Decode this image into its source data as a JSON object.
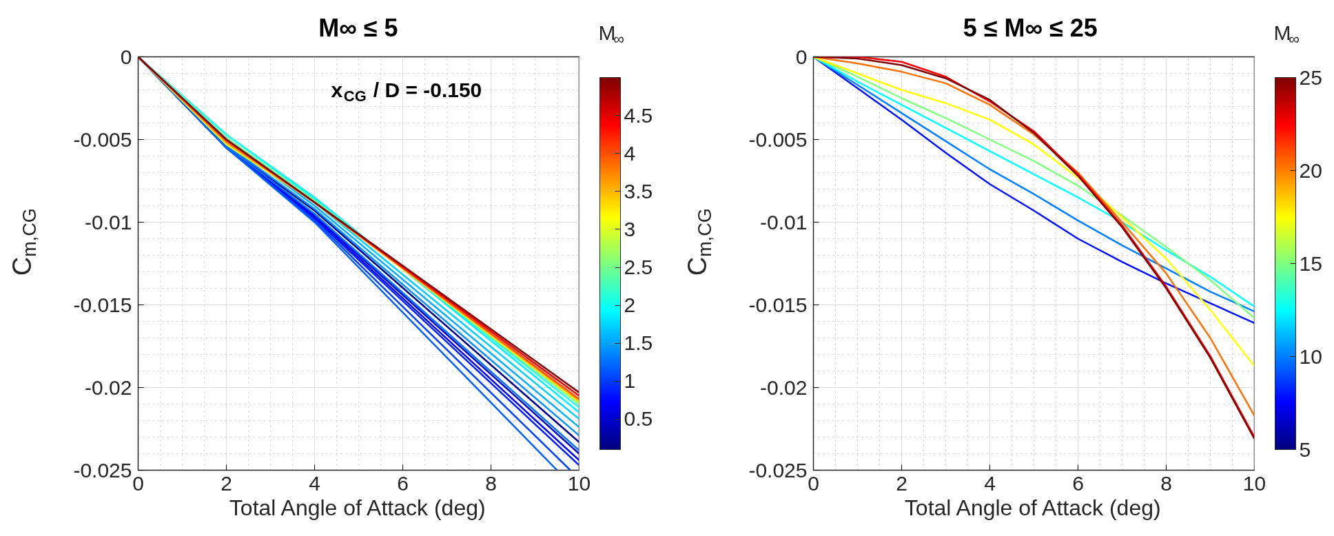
{
  "chart_data": [
    {
      "type": "line",
      "title": "M∞ ≤ 5",
      "xlabel": "Total Angle of Attack (deg)",
      "ylabel": "C$_{m,CG}$",
      "clabel": "M$_{∞}$",
      "annotations": [
        "x$_{CG}$ / D = -0.150"
      ],
      "xlim": [
        0,
        10
      ],
      "ylim": [
        -0.025,
        0
      ],
      "xticks": [
        0,
        2,
        4,
        6,
        8,
        10
      ],
      "yticks": [
        -0.025,
        -0.02,
        -0.015,
        -0.01,
        -0.005,
        0
      ],
      "clim": [
        0.1,
        5
      ],
      "cticks": [
        0.5,
        1,
        1.5,
        2,
        2.5,
        3,
        3.5,
        4,
        4.5
      ],
      "grid": true,
      "series": [
        {
          "color": "#00008f",
          "x": [
            0,
            2,
            4,
            10
          ],
          "values": [
            0,
            -0.0054,
            -0.0093,
            -0.0233
          ]
        },
        {
          "color": "#0000d0",
          "x": [
            0,
            2,
            4,
            10
          ],
          "values": [
            0,
            -0.0055,
            -0.0096,
            -0.024
          ]
        },
        {
          "color": "#0000ff",
          "x": [
            0,
            2,
            4,
            10
          ],
          "values": [
            0,
            -0.0055,
            -0.0097,
            -0.0244
          ]
        },
        {
          "color": "#0020ff",
          "x": [
            0,
            2,
            4,
            10
          ],
          "values": [
            0,
            -0.0055,
            -0.0098,
            -0.0247
          ]
        },
        {
          "color": "#0040ff",
          "x": [
            0,
            2,
            4,
            9.8
          ],
          "values": [
            0,
            -0.0055,
            -0.0099,
            -0.025
          ]
        },
        {
          "color": "#0060ff",
          "x": [
            0,
            2,
            4,
            9.5
          ],
          "values": [
            0,
            -0.0055,
            -0.01,
            -0.025
          ]
        },
        {
          "color": "#0070ff",
          "x": [
            0,
            2,
            4,
            10
          ],
          "values": [
            0,
            -0.0054,
            -0.0095,
            -0.0238
          ]
        },
        {
          "color": "#0090ff",
          "x": [
            0,
            2,
            4,
            10
          ],
          "values": [
            0,
            -0.0053,
            -0.0092,
            -0.0229
          ]
        },
        {
          "color": "#00b0ff",
          "x": [
            0,
            2,
            4,
            10
          ],
          "values": [
            0,
            -0.0051,
            -0.009,
            -0.0224
          ]
        },
        {
          "color": "#00d0ff",
          "x": [
            0,
            2,
            4,
            10
          ],
          "values": [
            0,
            -0.0049,
            -0.0088,
            -0.0219
          ]
        },
        {
          "color": "#00f0ff",
          "x": [
            0,
            2,
            4,
            10
          ],
          "values": [
            0,
            -0.0047,
            -0.0085,
            -0.0215
          ]
        },
        {
          "color": "#20ffdf",
          "x": [
            0,
            2,
            4,
            10
          ],
          "values": [
            0,
            -0.0047,
            -0.0086,
            -0.0212
          ]
        },
        {
          "color": "#70ff8f",
          "x": [
            0,
            2,
            4,
            10
          ],
          "values": [
            0,
            -0.0049,
            -0.0087,
            -0.021
          ]
        },
        {
          "color": "#e0ff20",
          "x": [
            0,
            2,
            4,
            10
          ],
          "values": [
            0,
            -0.0053,
            -0.0088,
            -0.0209
          ]
        },
        {
          "color": "#ffb000",
          "x": [
            0,
            2,
            4,
            10
          ],
          "values": [
            0,
            -0.0052,
            -0.0088,
            -0.0208
          ]
        },
        {
          "color": "#ff5000",
          "x": [
            0,
            2,
            4,
            10
          ],
          "values": [
            0,
            -0.0051,
            -0.0088,
            -0.0207
          ]
        },
        {
          "color": "#f00000",
          "x": [
            0,
            2,
            4,
            10
          ],
          "values": [
            0,
            -0.005,
            -0.0088,
            -0.0205
          ]
        },
        {
          "color": "#800000",
          "x": [
            0,
            2,
            4,
            10
          ],
          "values": [
            0,
            -0.005,
            -0.0088,
            -0.0203
          ]
        }
      ]
    },
    {
      "type": "line",
      "title": "5 ≤ M∞ ≤ 25",
      "xlabel": "Total Angle of Attack (deg)",
      "ylabel": "C$_{m,CG}$",
      "clabel": "M$_{∞}$",
      "xlim": [
        0,
        10
      ],
      "ylim": [
        -0.025,
        0
      ],
      "xticks": [
        0,
        2,
        4,
        6,
        8,
        10
      ],
      "yticks": [
        -0.025,
        -0.02,
        -0.015,
        -0.01,
        -0.005,
        0
      ],
      "clim": [
        5,
        25
      ],
      "cticks": [
        5,
        10,
        15,
        20,
        25
      ],
      "grid": true,
      "x": [
        0,
        1,
        2,
        3,
        4,
        5,
        6,
        7,
        8,
        9,
        10
      ],
      "series": [
        {
          "color": "#0010ff",
          "values": [
            0,
            -0.0019,
            -0.0038,
            -0.0058,
            -0.0077,
            -0.0093,
            -0.011,
            -0.0124,
            -0.0137,
            -0.0149,
            -0.0161
          ]
        },
        {
          "color": "#0080ff",
          "values": [
            0,
            -0.0017,
            -0.0034,
            -0.0051,
            -0.0068,
            -0.0083,
            -0.0099,
            -0.0114,
            -0.0128,
            -0.0142,
            -0.0154
          ]
        },
        {
          "color": "#00ffff",
          "values": [
            0,
            -0.0015,
            -0.0029,
            -0.0043,
            -0.0057,
            -0.0071,
            -0.0085,
            -0.01,
            -0.0117,
            -0.0133,
            -0.0151
          ]
        },
        {
          "color": "#80ff80",
          "values": [
            0,
            -0.0012,
            -0.0025,
            -0.0037,
            -0.005,
            -0.0063,
            -0.0078,
            -0.0096,
            -0.0115,
            -0.0135,
            -0.0158
          ]
        },
        {
          "color": "#ffff00",
          "values": [
            0,
            -0.001,
            -0.002,
            -0.0028,
            -0.0038,
            -0.0053,
            -0.0073,
            -0.0097,
            -0.0122,
            -0.0153,
            -0.0187
          ]
        },
        {
          "color": "#ff7000",
          "values": [
            0,
            -0.0004,
            -0.0009,
            -0.0016,
            -0.0029,
            -0.0047,
            -0.007,
            -0.01,
            -0.0131,
            -0.017,
            -0.0217
          ]
        },
        {
          "color": "#ff0000",
          "values": [
            0,
            0,
            -0.0003,
            -0.0012,
            -0.0027,
            -0.0045,
            -0.0071,
            -0.0102,
            -0.0139,
            -0.0181,
            -0.023
          ]
        },
        {
          "color": "#800000",
          "values": [
            0,
            -0.0001,
            -0.0005,
            -0.0013,
            -0.0026,
            -0.0046,
            -0.0072,
            -0.0103,
            -0.014,
            -0.0182,
            -0.0231
          ]
        }
      ]
    }
  ]
}
